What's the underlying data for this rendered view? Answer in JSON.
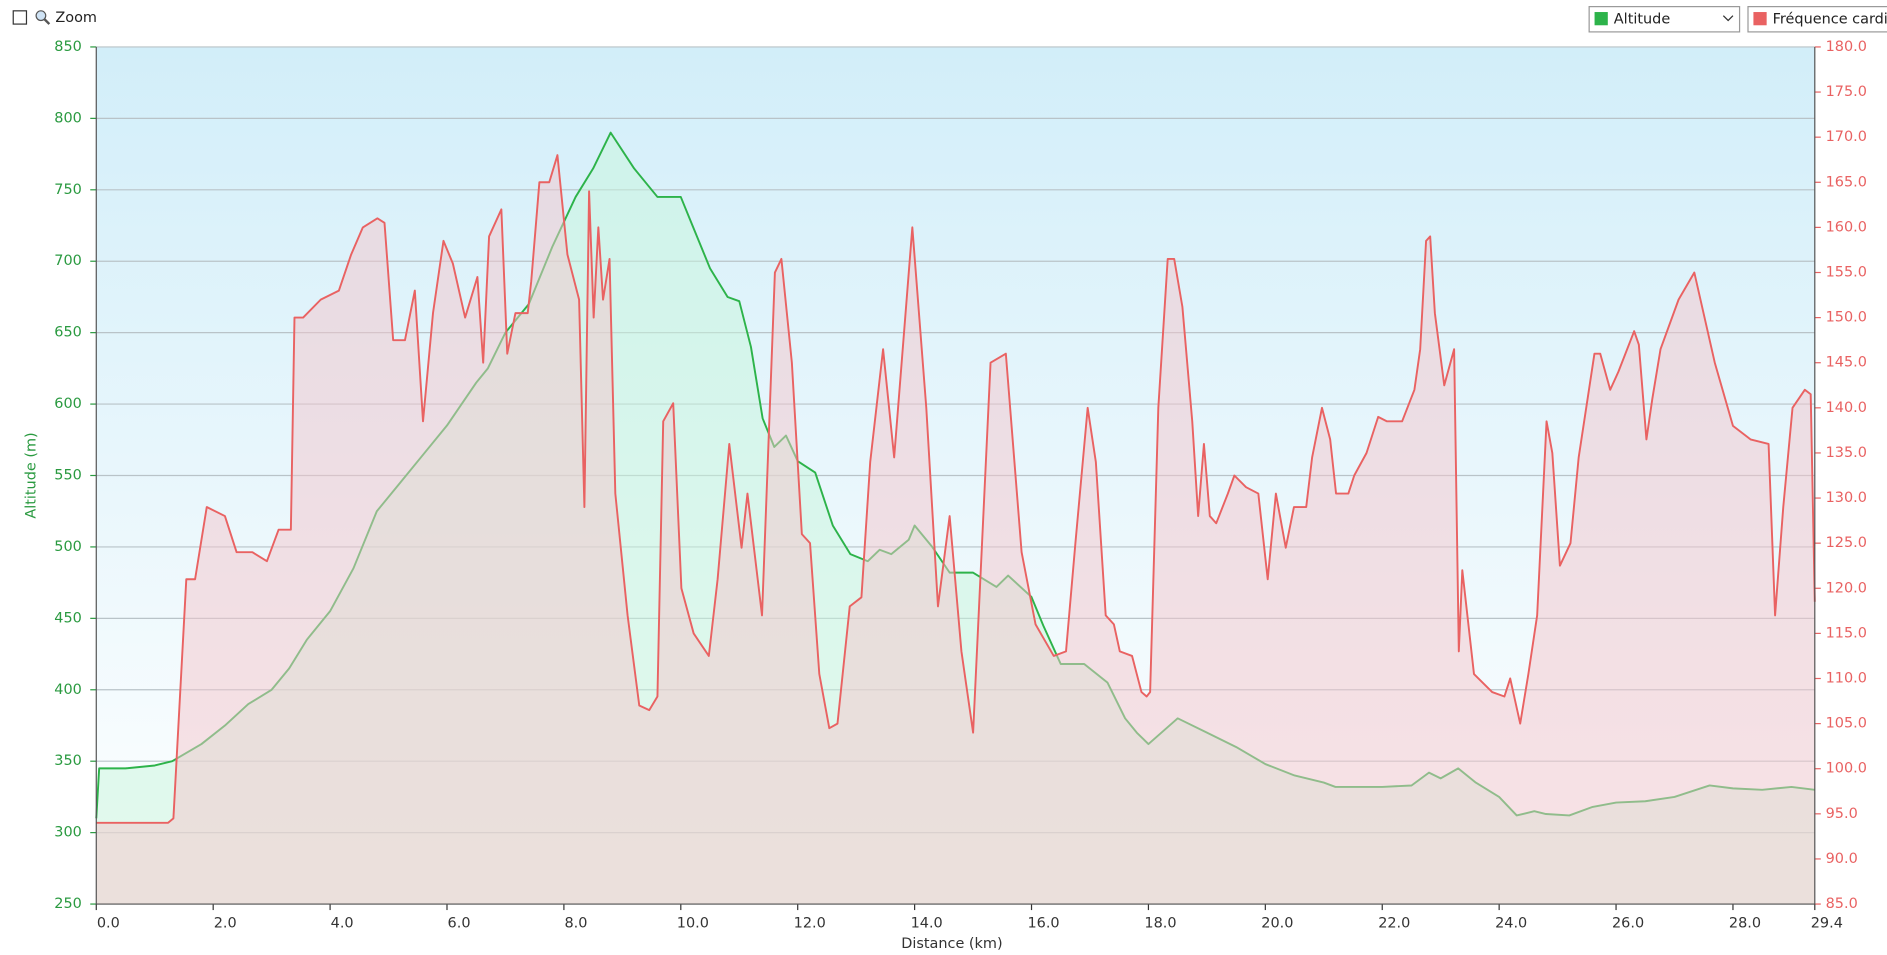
{
  "chart_data": {
    "type": "line",
    "zoom_label": "Zoom",
    "xlabel": "Distance  (km)",
    "ylabel": "Altitude (m)",
    "xlim": [
      0,
      29.4
    ],
    "xticks": [
      {
        "value": 0,
        "label": "0.0"
      },
      {
        "value": 2,
        "label": "2.0"
      },
      {
        "value": 4,
        "label": "4.0"
      },
      {
        "value": 6,
        "label": "6.0"
      },
      {
        "value": 8,
        "label": "8.0"
      },
      {
        "value": 10,
        "label": "10.0"
      },
      {
        "value": 12,
        "label": "12.0"
      },
      {
        "value": 14,
        "label": "14.0"
      },
      {
        "value": 16,
        "label": "16.0"
      },
      {
        "value": 18,
        "label": "18.0"
      },
      {
        "value": 20,
        "label": "20.0"
      },
      {
        "value": 22,
        "label": "22.0"
      },
      {
        "value": 24,
        "label": "24.0"
      },
      {
        "value": 26,
        "label": "26.0"
      },
      {
        "value": 28,
        "label": "28.0"
      },
      {
        "value": 29.4,
        "label": "29.4"
      }
    ],
    "ylim": [
      250,
      850
    ],
    "yticks": [
      250,
      300,
      350,
      400,
      450,
      500,
      550,
      600,
      650,
      700,
      750,
      800,
      850
    ],
    "y2lim": [
      85,
      180
    ],
    "y2ticks": [
      {
        "value": 85,
        "label": "85.0"
      },
      {
        "value": 90,
        "label": "90.0"
      },
      {
        "value": 95,
        "label": "95.0"
      },
      {
        "value": 100,
        "label": "100.0"
      },
      {
        "value": 105,
        "label": "105.0"
      },
      {
        "value": 110,
        "label": "110.0"
      },
      {
        "value": 115,
        "label": "115.0"
      },
      {
        "value": 120,
        "label": "120.0"
      },
      {
        "value": 125,
        "label": "125.0"
      },
      {
        "value": 130,
        "label": "130.0"
      },
      {
        "value": 135,
        "label": "135.0"
      },
      {
        "value": 140,
        "label": "140.0"
      },
      {
        "value": 145,
        "label": "145.0"
      },
      {
        "value": 150,
        "label": "150.0"
      },
      {
        "value": 155,
        "label": "155.0"
      },
      {
        "value": 160,
        "label": "160.0"
      },
      {
        "value": 165,
        "label": "165.0"
      },
      {
        "value": 170,
        "label": "170.0"
      },
      {
        "value": 175,
        "label": "175.0"
      },
      {
        "value": 180,
        "label": "180.0"
      }
    ],
    "grid": true,
    "series": [
      {
        "name": "Altitude",
        "color": "#2db34a",
        "fill": "#c8f5dc",
        "x": [
          0,
          0.05,
          0.5,
          1.0,
          1.3,
          1.8,
          2.2,
          2.6,
          3.0,
          3.3,
          3.6,
          4.0,
          4.4,
          4.8,
          5.2,
          5.6,
          6.0,
          6.5,
          6.7,
          7.0,
          7.4,
          7.8,
          8.2,
          8.5,
          8.8,
          9.2,
          9.6,
          10.0,
          10.2,
          10.5,
          10.8,
          11.0,
          11.2,
          11.4,
          11.6,
          11.8,
          12.0,
          12.3,
          12.6,
          12.9,
          13.2,
          13.4,
          13.6,
          13.9,
          14.0,
          14.3,
          14.6,
          15.0,
          15.4,
          15.6,
          16.0,
          16.2,
          16.5,
          16.9,
          17.3,
          17.6,
          17.8,
          18.0,
          18.5,
          19.0,
          19.5,
          20.0,
          20.5,
          21.0,
          21.2,
          21.5,
          22.0,
          22.5,
          22.8,
          23.0,
          23.3,
          23.6,
          24.0,
          24.3,
          24.6,
          24.8,
          25.2,
          25.6,
          26.0,
          26.5,
          27.0,
          27.6,
          28.0,
          28.5,
          29.0,
          29.4
        ],
        "values": [
          310,
          345,
          345,
          347,
          350,
          362,
          375,
          390,
          400,
          415,
          435,
          455,
          485,
          525,
          545,
          565,
          585,
          615,
          625,
          650,
          670,
          710,
          745,
          765,
          790,
          765,
          745,
          745,
          725,
          695,
          675,
          672,
          640,
          590,
          570,
          578,
          560,
          552,
          515,
          495,
          490,
          498,
          495,
          505,
          515,
          500,
          482,
          482,
          472,
          480,
          465,
          445,
          418,
          418,
          405,
          380,
          370,
          362,
          380,
          370,
          360,
          348,
          340,
          335,
          332,
          332,
          332,
          333,
          342,
          338,
          345,
          335,
          325,
          312,
          315,
          313,
          312,
          318,
          321,
          322,
          325,
          333,
          331,
          330,
          332,
          330
        ]
      },
      {
        "name": "Fréquence cardia",
        "color": "#e96262",
        "fill": "#f3c6cc",
        "axis": "y2",
        "x": [
          0,
          1.23,
          1.32,
          1.54,
          1.69,
          1.89,
          2.2,
          2.4,
          2.67,
          2.92,
          3.12,
          3.33,
          3.39,
          3.54,
          3.84,
          4.15,
          4.36,
          4.56,
          4.81,
          4.93,
          5.08,
          5.28,
          5.45,
          5.59,
          5.76,
          5.94,
          6.1,
          6.31,
          6.52,
          6.62,
          6.72,
          6.93,
          7.03,
          7.17,
          7.38,
          7.44,
          7.58,
          7.75,
          7.89,
          8.06,
          8.26,
          8.35,
          8.43,
          8.51,
          8.59,
          8.67,
          8.78,
          8.88,
          9.09,
          9.29,
          9.46,
          9.6,
          9.7,
          9.87,
          10.01,
          10.22,
          10.48,
          10.63,
          10.83,
          11.04,
          11.14,
          11.39,
          11.61,
          11.72,
          11.9,
          12.07,
          12.21,
          12.37,
          12.54,
          12.68,
          12.89,
          13.09,
          13.24,
          13.46,
          13.65,
          13.96,
          14.2,
          14.4,
          14.6,
          14.8,
          15.0,
          15.3,
          15.56,
          15.83,
          16.07,
          16.38,
          16.59,
          16.75,
          16.96,
          17.1,
          17.27,
          17.41,
          17.51,
          17.72,
          17.88,
          17.97,
          18.03,
          18.17,
          18.33,
          18.44,
          18.58,
          18.75,
          18.85,
          18.95,
          19.05,
          19.16,
          19.36,
          19.47,
          19.67,
          19.88,
          20.04,
          20.18,
          20.35,
          20.49,
          20.7,
          20.8,
          20.97,
          21.11,
          21.21,
          21.42,
          21.52,
          21.73,
          21.93,
          22.08,
          22.34,
          22.55,
          22.65,
          22.75,
          22.82,
          22.9,
          23.06,
          23.23,
          23.31,
          23.37,
          23.57,
          23.88,
          24.09,
          24.19,
          24.36,
          24.5,
          24.65,
          24.81,
          24.91,
          25.04,
          25.22,
          25.36,
          25.63,
          25.73,
          25.9,
          26.04,
          26.31,
          26.39,
          26.52,
          26.62,
          26.76,
          27.07,
          27.34,
          27.69,
          28.0,
          28.3,
          28.61,
          28.72,
          28.86,
          29.02,
          29.23,
          29.33,
          29.4
        ],
        "values": [
          94,
          94,
          94.5,
          121,
          121,
          129,
          128,
          124,
          124,
          123,
          126.5,
          126.5,
          150,
          150,
          152,
          153,
          157,
          160,
          161,
          160.5,
          147.5,
          147.5,
          153,
          138.5,
          150.5,
          158.5,
          156,
          150,
          154.5,
          145,
          159,
          162,
          146,
          150.5,
          150.5,
          154,
          165,
          165,
          168,
          157,
          152,
          129,
          164,
          150,
          160,
          152,
          156.5,
          130.5,
          117,
          107,
          106.5,
          108,
          138.5,
          140.5,
          120,
          115,
          112.5,
          121,
          136,
          124.5,
          130.5,
          117,
          155,
          156.5,
          145,
          126,
          125,
          110.5,
          104.5,
          105,
          118,
          119,
          134,
          146.5,
          134.5,
          160,
          140,
          118,
          128,
          113,
          104,
          145,
          146,
          124,
          116,
          112.5,
          113,
          125,
          140,
          134,
          117,
          116,
          113,
          112.5,
          108.5,
          108,
          108.5,
          140,
          156.5,
          156.5,
          151.2,
          138.5,
          128,
          136,
          128,
          127.2,
          130.5,
          132.5,
          131.2,
          130.5,
          121,
          130.5,
          124.5,
          129,
          129,
          134.5,
          140,
          136.5,
          130.5,
          130.5,
          132.5,
          135,
          139,
          138.5,
          138.5,
          142,
          146.5,
          158.5,
          159,
          150.5,
          142.5,
          146.5,
          113,
          122,
          110.5,
          108.5,
          108,
          110,
          105,
          110.5,
          117,
          138.5,
          135,
          122.5,
          125,
          134.5,
          146,
          146,
          142,
          144,
          148.5,
          147,
          136.5,
          141,
          146.5,
          152,
          155,
          145,
          138,
          136.5,
          136,
          117,
          129,
          140,
          142,
          141.5,
          118.5
        ]
      }
    ]
  }
}
